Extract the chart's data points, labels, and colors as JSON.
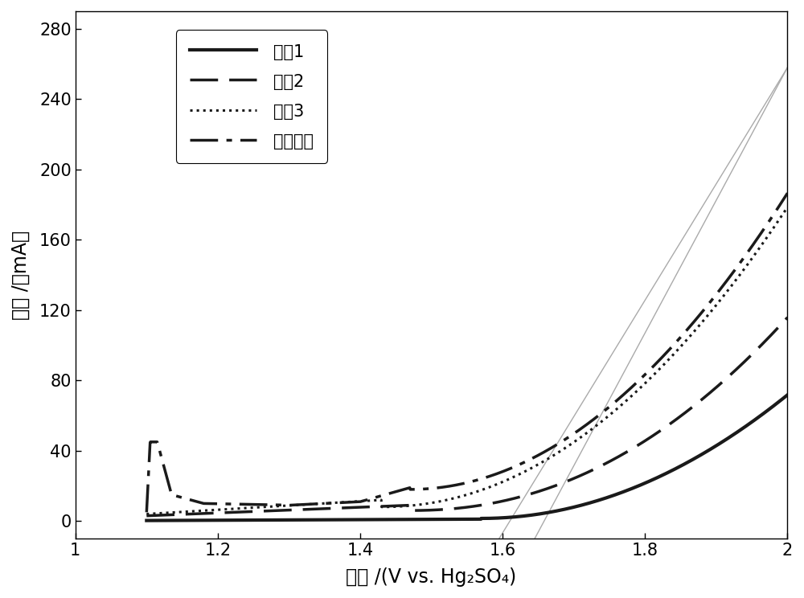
{
  "xlabel": "电位 /(V vs. Hg₂SO₄)",
  "ylabel": "电流 /（mA）",
  "xlim": [
    1.0,
    2.0
  ],
  "ylim": [
    -10,
    290
  ],
  "yticks": [
    0,
    40,
    80,
    120,
    160,
    200,
    240,
    280
  ],
  "xticks": [
    1.0,
    1.2,
    1.4,
    1.6,
    1.8,
    2.0
  ],
  "legend_labels": [
    "电极1",
    "电极2",
    "电极3",
    "对比电极"
  ],
  "line_color": "#1a1a1a",
  "gray_line_color": "#aaaaaa",
  "linewidth": 2.5,
  "gray_linewidth": 1.0,
  "figsize": [
    10.0,
    7.44
  ],
  "dpi": 100,
  "gray_line1_x0": 1.595,
  "gray_line1_y0": -10,
  "gray_line1_x1": 2.0,
  "gray_line1_y1": 258,
  "gray_line2_x0": 1.645,
  "gray_line2_y0": -10,
  "gray_line2_x1": 2.0,
  "gray_line2_y1": 258
}
